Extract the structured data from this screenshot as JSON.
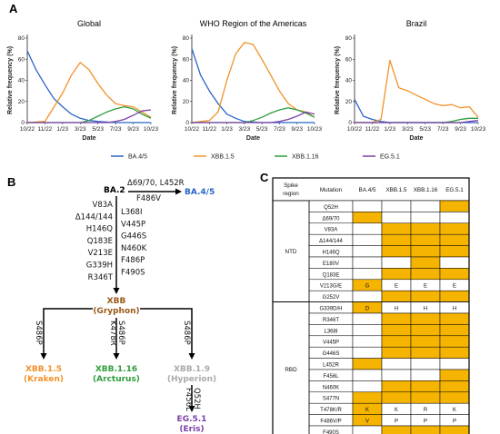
{
  "panels": {
    "a": "A",
    "b": "B",
    "c": "C"
  },
  "charts_common": {
    "xlabel": "Date",
    "ylabel": "Relative frequency (%)",
    "x_ticks": [
      "10/22",
      "11/22",
      "1/23",
      "3/23",
      "5/23",
      "7/23",
      "9/23",
      "10/23"
    ],
    "y_ticks": [
      "0",
      "20",
      "40",
      "60",
      "80"
    ]
  },
  "colors": {
    "BA.4/5": "#2864c8",
    "XBB.1.5": "#f0922a",
    "XBB.1.16": "#2f9e3c",
    "EG.5.1": "#7b3fa8",
    "highlight": "#f5b400",
    "grey_lineage": "#aaaaaa"
  },
  "chart_data": [
    {
      "type": "line",
      "title": "Global",
      "xlabel": "Date",
      "ylabel": "Relative frequency (%)",
      "categories": [
        "10/22",
        "11/22",
        "1/23",
        "3/23",
        "5/23",
        "7/23",
        "9/23",
        "10/23"
      ],
      "ylim": [
        0,
        80
      ],
      "series": [
        {
          "name": "BA.4/5",
          "x": [
            0,
            0.5,
            1,
            1.5,
            2,
            2.5,
            3,
            3.5,
            4,
            5,
            6,
            7
          ],
          "y": [
            68,
            50,
            36,
            23,
            15,
            8,
            4,
            2,
            1,
            0,
            0,
            0
          ]
        },
        {
          "name": "XBB.1.5",
          "x": [
            0,
            1,
            2,
            2.5,
            3,
            3.5,
            4,
            4.5,
            5,
            5.5,
            6,
            6.5,
            7
          ],
          "y": [
            0,
            1,
            28,
            45,
            57,
            50,
            37,
            26,
            18,
            16,
            15,
            10,
            5
          ]
        },
        {
          "name": "XBB.1.16",
          "x": [
            0,
            3,
            3.5,
            4,
            4.5,
            5,
            5.5,
            6,
            6.5,
            7
          ],
          "y": [
            0,
            0,
            2,
            6,
            10,
            13,
            15,
            13,
            8,
            4
          ]
        },
        {
          "name": "EG.5.1",
          "x": [
            0,
            4.5,
            5,
            5.5,
            6,
            6.5,
            7
          ],
          "y": [
            0,
            0,
            1,
            3,
            7,
            11,
            12
          ]
        }
      ]
    },
    {
      "type": "line",
      "title": "WHO Region of the Americas",
      "xlabel": "Date",
      "ylabel": "Relative frequency (%)",
      "categories": [
        "10/22",
        "11/22",
        "1/23",
        "3/23",
        "5/23",
        "7/23",
        "9/23",
        "10/23"
      ],
      "ylim": [
        0,
        80
      ],
      "series": [
        {
          "name": "BA.4/5",
          "x": [
            0,
            0.5,
            1,
            1.5,
            2,
            2.5,
            3,
            4,
            5,
            6,
            7
          ],
          "y": [
            70,
            45,
            30,
            18,
            8,
            4,
            1,
            0,
            0,
            0,
            0
          ]
        },
        {
          "name": "XBB.1.5",
          "x": [
            0,
            1,
            1.5,
            2,
            2.5,
            3,
            3.5,
            4,
            4.5,
            5,
            5.5,
            6,
            6.5,
            7
          ],
          "y": [
            0,
            2,
            10,
            40,
            65,
            76,
            74,
            60,
            45,
            30,
            18,
            12,
            10,
            5
          ]
        },
        {
          "name": "XBB.1.16",
          "x": [
            0,
            3,
            3.5,
            4,
            4.5,
            5,
            5.5,
            6,
            6.5,
            7
          ],
          "y": [
            0,
            0,
            2,
            5,
            9,
            12,
            14,
            12,
            9,
            5
          ]
        },
        {
          "name": "EG.5.1",
          "x": [
            0,
            4.5,
            5,
            5.5,
            6,
            6.5,
            7
          ],
          "y": [
            0,
            0,
            1,
            3,
            6,
            10,
            8
          ]
        }
      ]
    },
    {
      "type": "line",
      "title": "Brazil",
      "xlabel": "Date",
      "ylabel": "Relative frequency (%)",
      "categories": [
        "10/22",
        "11/22",
        "1/23",
        "3/23",
        "5/23",
        "7/23",
        "9/23",
        "10/23"
      ],
      "ylim": [
        0,
        80
      ],
      "series": [
        {
          "name": "BA.4/5",
          "x": [
            0,
            0.5,
            1,
            1.5,
            2,
            3,
            4,
            5,
            6,
            7
          ],
          "y": [
            22,
            6,
            3,
            1,
            0,
            0,
            0,
            0,
            0,
            0
          ]
        },
        {
          "name": "XBB.1.5",
          "x": [
            0,
            1,
            1.5,
            2,
            2.5,
            3,
            3.5,
            4,
            4.5,
            5,
            5.5,
            6,
            6.5,
            7
          ],
          "y": [
            0,
            0,
            3,
            59,
            33,
            30,
            26,
            22,
            18,
            16,
            17,
            14,
            15,
            5
          ]
        },
        {
          "name": "XBB.1.16",
          "x": [
            0,
            5,
            5.5,
            6,
            6.5,
            7
          ],
          "y": [
            0,
            0,
            1,
            3,
            4,
            4
          ]
        },
        {
          "name": "EG.5.1",
          "x": [
            0,
            6,
            6.5,
            7
          ],
          "y": [
            0,
            0,
            1,
            2
          ]
        }
      ]
    }
  ],
  "legend": {
    "items": [
      "BA.4/5",
      "XBB.1.5",
      "XBB.1.16",
      "EG.5.1"
    ]
  },
  "tree": {
    "ba2": "BA.2",
    "to_ba45_muts": [
      "Δ69/70, L452R",
      "F486V"
    ],
    "ba45": "BA.4/5",
    "left_muts": [
      "V83A",
      "Δ144/144",
      "H146Q",
      "Q183E",
      "V213E",
      "G339H",
      "R346T"
    ],
    "right_muts": [
      "L368I",
      "V445P",
      "G446S",
      "N460K",
      "F486P",
      "F490S"
    ],
    "xbb": "XBB",
    "xbb_nick": "(Gryphon)",
    "xbb15_mut": "S486P",
    "xbb116_muts": [
      "S486P",
      "K478R"
    ],
    "xbb19_mut": "S486P",
    "eg51_muts": [
      "Q52H",
      "F456L"
    ],
    "xbb15": "XBB.1.5",
    "xbb15_nick": "(Kraken)",
    "xbb116": "XBB.1.16",
    "xbb116_nick": "(Arcturus)",
    "xbb19": "XBB.1.9",
    "xbb19_nick": "(Hyperion)",
    "eg51": "EG.5.1",
    "eg51_nick": "(Eris)"
  },
  "table": {
    "header": [
      "Spike region",
      "Mutation",
      "BA.4/5",
      "XBB.1.5",
      "XBB.1.16",
      "EG.5.1"
    ],
    "regions": [
      {
        "name": "NTD",
        "rows": [
          {
            "mut": "Q52H",
            "cells": [
              0,
              0,
              0,
              1
            ]
          },
          {
            "mut": "Δ69/70",
            "cells": [
              1,
              0,
              0,
              0
            ]
          },
          {
            "mut": "V83A",
            "cells": [
              0,
              1,
              1,
              1
            ]
          },
          {
            "mut": "Δ144/144",
            "cells": [
              0,
              1,
              1,
              1
            ]
          },
          {
            "mut": "H146Q",
            "cells": [
              0,
              1,
              1,
              1
            ]
          },
          {
            "mut": "E180V",
            "cells": [
              0,
              0,
              1,
              0
            ]
          },
          {
            "mut": "Q183E",
            "cells": [
              0,
              1,
              1,
              1
            ]
          },
          {
            "mut": "V213G/E",
            "cells": [
              "G",
              "E",
              "E",
              "E"
            ]
          },
          {
            "mut": "G252V",
            "cells": [
              0,
              1,
              1,
              1
            ]
          }
        ]
      },
      {
        "name": "RBD",
        "rows": [
          {
            "mut": "G339D/H",
            "cells": [
              "D",
              "H",
              "H",
              "H"
            ]
          },
          {
            "mut": "R346T",
            "cells": [
              0,
              1,
              1,
              1
            ]
          },
          {
            "mut": "L368I",
            "cells": [
              0,
              1,
              1,
              1
            ]
          },
          {
            "mut": "V445P",
            "cells": [
              0,
              1,
              1,
              1
            ]
          },
          {
            "mut": "G446S",
            "cells": [
              0,
              1,
              1,
              1
            ]
          },
          {
            "mut": "L452R",
            "cells": [
              1,
              0,
              0,
              0
            ]
          },
          {
            "mut": "F456L",
            "cells": [
              0,
              0,
              0,
              1
            ]
          },
          {
            "mut": "N460K",
            "cells": [
              0,
              1,
              1,
              1
            ]
          },
          {
            "mut": "S477N",
            "cells": [
              1,
              1,
              1,
              1
            ]
          },
          {
            "mut": "T478K/R",
            "cells": [
              "K",
              "K",
              "R",
              "K"
            ]
          },
          {
            "mut": "F486V/P",
            "cells": [
              "V",
              "P",
              "P",
              "P"
            ]
          },
          {
            "mut": "F490S",
            "cells": [
              0,
              1,
              1,
              1
            ]
          }
        ]
      }
    ]
  }
}
